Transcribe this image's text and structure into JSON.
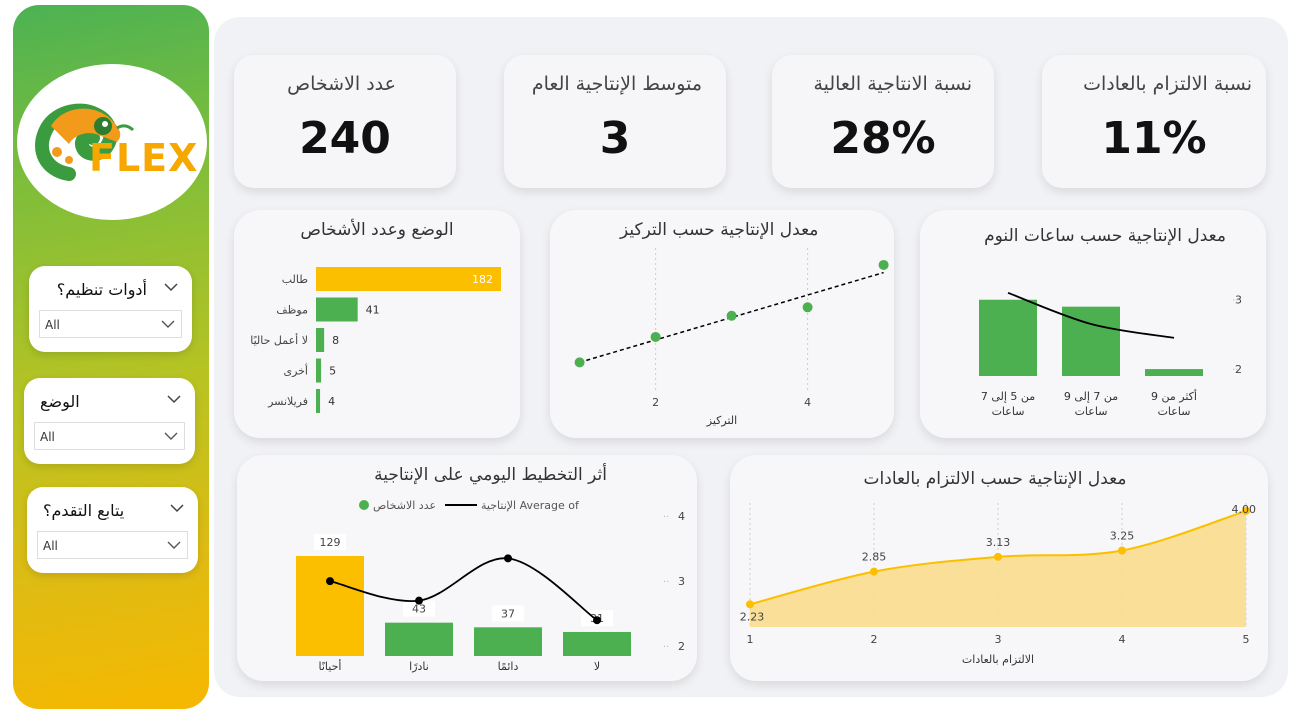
{
  "brand": {
    "logo_text": "FLEX"
  },
  "slicers": [
    {
      "title": "أدوات تنظيم؟",
      "value": "All"
    },
    {
      "title": "الوضع",
      "value": "All"
    },
    {
      "title": "يتابع التقدم؟",
      "value": "All"
    }
  ],
  "kpis": [
    {
      "label": "نسبة الالتزام بالعادات",
      "value": "11%"
    },
    {
      "label": "نسبة الانتاجية العالية",
      "value": "28%"
    },
    {
      "label": "متوسط الإنتاجية العام",
      "value": "3"
    },
    {
      "label": "عدد الاشخاص",
      "value": "240"
    }
  ],
  "colors": {
    "green": "#4caf50",
    "gold": "#fcbf00",
    "area_fill": "#f8dc8c",
    "line": "#000000"
  },
  "chart_data": [
    {
      "id": "status",
      "type": "bar",
      "orientation": "horizontal",
      "title": "الوضع وعدد الأشخاص",
      "categories": [
        "طالب",
        "موظف",
        "لا أعمل حاليًا",
        "أخرى",
        "فريلانسر"
      ],
      "values": [
        182,
        41,
        8,
        5,
        4
      ],
      "highlight_index": 0
    },
    {
      "id": "focus",
      "type": "scatter",
      "title": "معدل الإنتاجية حسب التركيز",
      "xlabel": "التركيز",
      "x_ticks": [
        2,
        4
      ],
      "xlim": [
        0.9,
        4.9
      ],
      "ylim": [
        1.3,
        4.7
      ],
      "points": [
        [
          1,
          2.0
        ],
        [
          2,
          2.6
        ],
        [
          3,
          3.1
        ],
        [
          4,
          3.3
        ],
        [
          5,
          4.3
        ]
      ],
      "trendline": true
    },
    {
      "id": "sleep",
      "type": "bar",
      "title": "معدل الإنتاجية حسب ساعات النوم",
      "categories": [
        "من 5 إلى 7 ساعات",
        "من 7 إلى 9 ساعات",
        "أكثر من 9 ساعات"
      ],
      "values": [
        3.0,
        2.9,
        2.0
      ],
      "line_values": [
        3.1,
        2.65,
        2.45
      ],
      "y_ticks": [
        2,
        3
      ],
      "ylim": [
        1.9,
        3.4
      ]
    },
    {
      "id": "planning",
      "type": "bar",
      "title": "أثر التخطيط اليومي على الإنتاجية",
      "legend": [
        "عدد الاشخاص",
        "الإنتاجية Average of"
      ],
      "categories": [
        "أحيانًا",
        "نادرًا",
        "دائمًا",
        "لا"
      ],
      "values": [
        129,
        43,
        37,
        31
      ],
      "line_values": [
        3.0,
        2.7,
        3.35,
        2.4
      ],
      "y_ticks": [
        2,
        3,
        4
      ],
      "ylim": [
        1.85,
        4.2
      ]
    },
    {
      "id": "habits",
      "type": "area",
      "title": "معدل الإنتاجية حسب الالتزام بالعادات",
      "xlabel": "الالتزام بالعادات",
      "x": [
        1,
        2,
        3,
        4,
        5
      ],
      "values": [
        2.23,
        2.85,
        3.13,
        3.25,
        4.0
      ],
      "value_labels": [
        "2.23",
        "2.85",
        "3.13",
        "3.25",
        "4.00"
      ],
      "ylim": [
        1.8,
        4.15
      ]
    }
  ]
}
